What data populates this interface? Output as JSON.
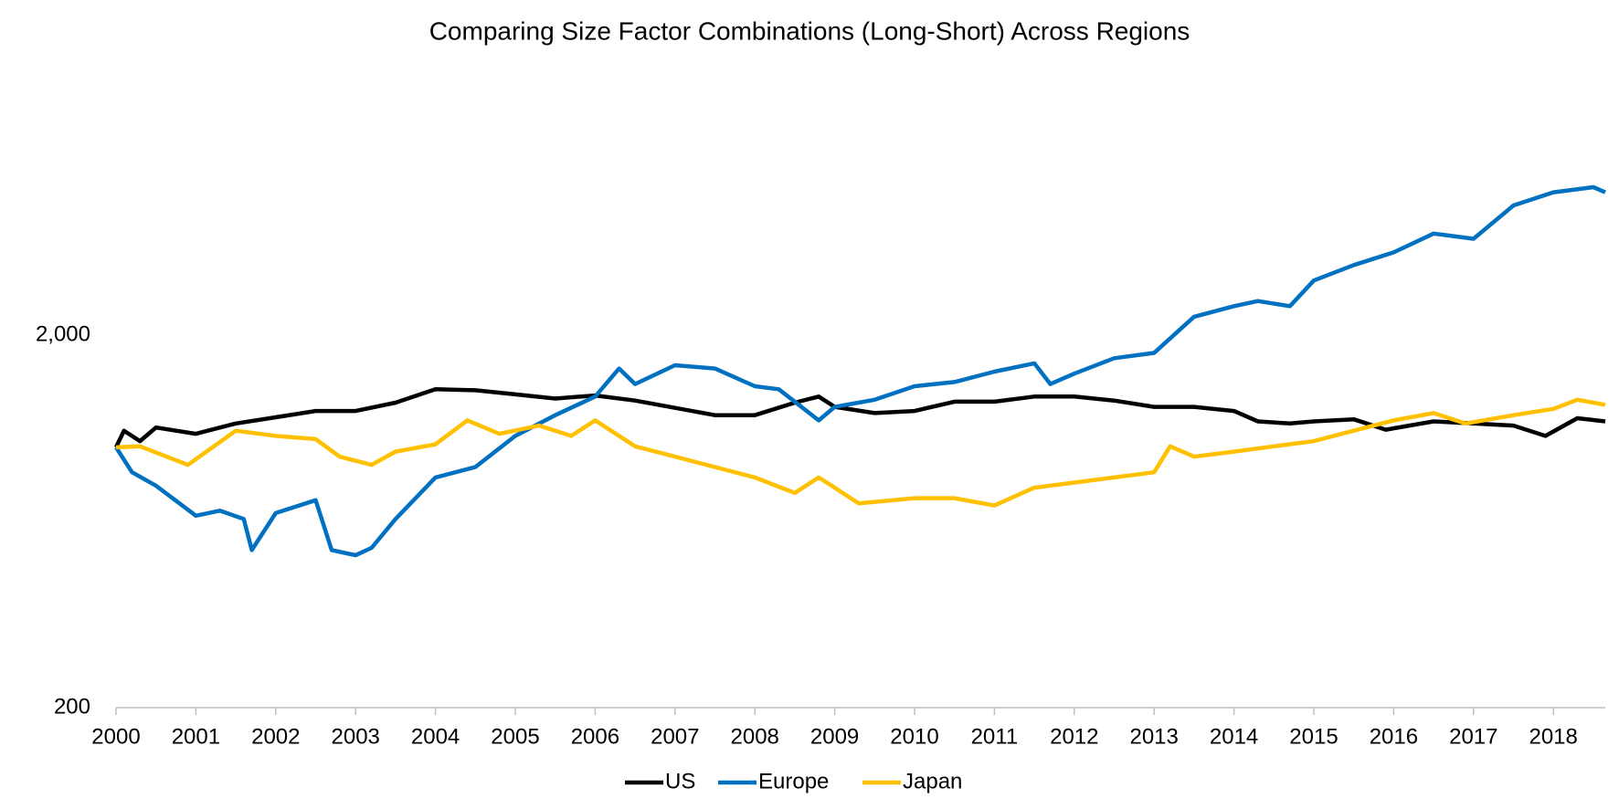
{
  "chart_data": {
    "type": "line",
    "title": "Comparing Size Factor Combinations (Long-Short) Across Regions",
    "ylog": true,
    "grid": false,
    "legend": "bottom",
    "xlim": [
      2000,
      2018.65
    ],
    "xticks": [
      2000,
      2001,
      2002,
      2003,
      2004,
      2005,
      2006,
      2007,
      2008,
      2009,
      2010,
      2011,
      2012,
      2013,
      2014,
      2015,
      2016,
      2017,
      2018
    ],
    "ylim": [
      200,
      10000
    ],
    "yticks": [
      200,
      {
        "value": 2000,
        "label": "2,000"
      }
    ],
    "series": [
      {
        "name": "US",
        "color": "#000000",
        "x": [
          2000,
          2000.1,
          2000.3,
          2000.5,
          2001,
          2001.5,
          2002,
          2002.5,
          2003,
          2003.5,
          2004,
          2004.5,
          2005,
          2005.5,
          2006,
          2006.5,
          2007,
          2007.5,
          2008,
          2008.5,
          2008.8,
          2009,
          2009.5,
          2010,
          2010.5,
          2011,
          2011.5,
          2012,
          2012.5,
          2013,
          2013.5,
          2014,
          2014.3,
          2014.7,
          2015,
          2015.5,
          2015.9,
          2016.5,
          2017,
          2017.5,
          2017.9,
          2018.3,
          2018.65
        ],
        "values": [
          1000,
          1108,
          1039,
          1130,
          1087,
          1159,
          1204,
          1252,
          1252,
          1318,
          1432,
          1423,
          1387,
          1352,
          1378,
          1335,
          1276,
          1220,
          1220,
          1318,
          1369,
          1284,
          1236,
          1252,
          1326,
          1326,
          1369,
          1369,
          1335,
          1284,
          1284,
          1252,
          1174,
          1159,
          1174,
          1189,
          1115,
          1174,
          1159,
          1144,
          1073,
          1197,
          1174
        ]
      },
      {
        "name": "Europe",
        "color": "#0070c0",
        "x": [
          2000,
          2000.2,
          2000.5,
          2001,
          2001.3,
          2001.6,
          2001.7,
          2002,
          2002.5,
          2002.7,
          2003,
          2003.2,
          2003.5,
          2004,
          2004.5,
          2005,
          2005.5,
          2006,
          2006.3,
          2006.5,
          2007,
          2007.5,
          2008,
          2008.3,
          2008.8,
          2009,
          2009.5,
          2010,
          2010.5,
          2011,
          2011.5,
          2011.7,
          2012,
          2012.5,
          2013,
          2013.5,
          2014,
          2014.3,
          2014.7,
          2015,
          2015.5,
          2016,
          2016.5,
          2017,
          2017.5,
          2018,
          2018.5,
          2018.65
        ],
        "values": [
          1000,
          857,
          789,
          655,
          676,
          642,
          530,
          666,
          721,
          530,
          513,
          537,
          642,
          830,
          885,
          1073,
          1220,
          1369,
          1628,
          1479,
          1661,
          1628,
          1459,
          1432,
          1181,
          1284,
          1342,
          1459,
          1497,
          1597,
          1681,
          1479,
          1577,
          1735,
          1793,
          2242,
          2394,
          2470,
          2394,
          2804,
          3085,
          3338,
          3750,
          3630,
          4461,
          4839,
          4995,
          4839
        ]
      },
      {
        "name": "Japan",
        "color": "#ffc000",
        "x": [
          2000,
          2000.3,
          2000.9,
          2001.5,
          2002,
          2002.5,
          2002.8,
          2003.2,
          2003.5,
          2004,
          2004.4,
          2004.8,
          2005.3,
          2005.7,
          2006,
          2006.5,
          2007,
          2007.5,
          2008,
          2008.5,
          2008.8,
          2009,
          2009.3,
          2010,
          2010.5,
          2011,
          2011.5,
          2012,
          2012.5,
          2013,
          2013.2,
          2013.5,
          2014,
          2014.5,
          2015,
          2015.5,
          2016,
          2016.5,
          2016.9,
          2017.5,
          2018,
          2018.3,
          2018.65
        ],
        "values": [
          1000,
          1006,
          897,
          1108,
          1073,
          1052,
          944,
          897,
          974,
          1019,
          1181,
          1087,
          1144,
          1073,
          1181,
          1006,
          944,
          885,
          830,
          754,
          830,
          779,
          707,
          730,
          730,
          698,
          779,
          804,
          830,
          857,
          1006,
          944,
          974,
          1006,
          1039,
          1108,
          1181,
          1236,
          1159,
          1220,
          1268,
          1342,
          1300
        ]
      }
    ]
  }
}
